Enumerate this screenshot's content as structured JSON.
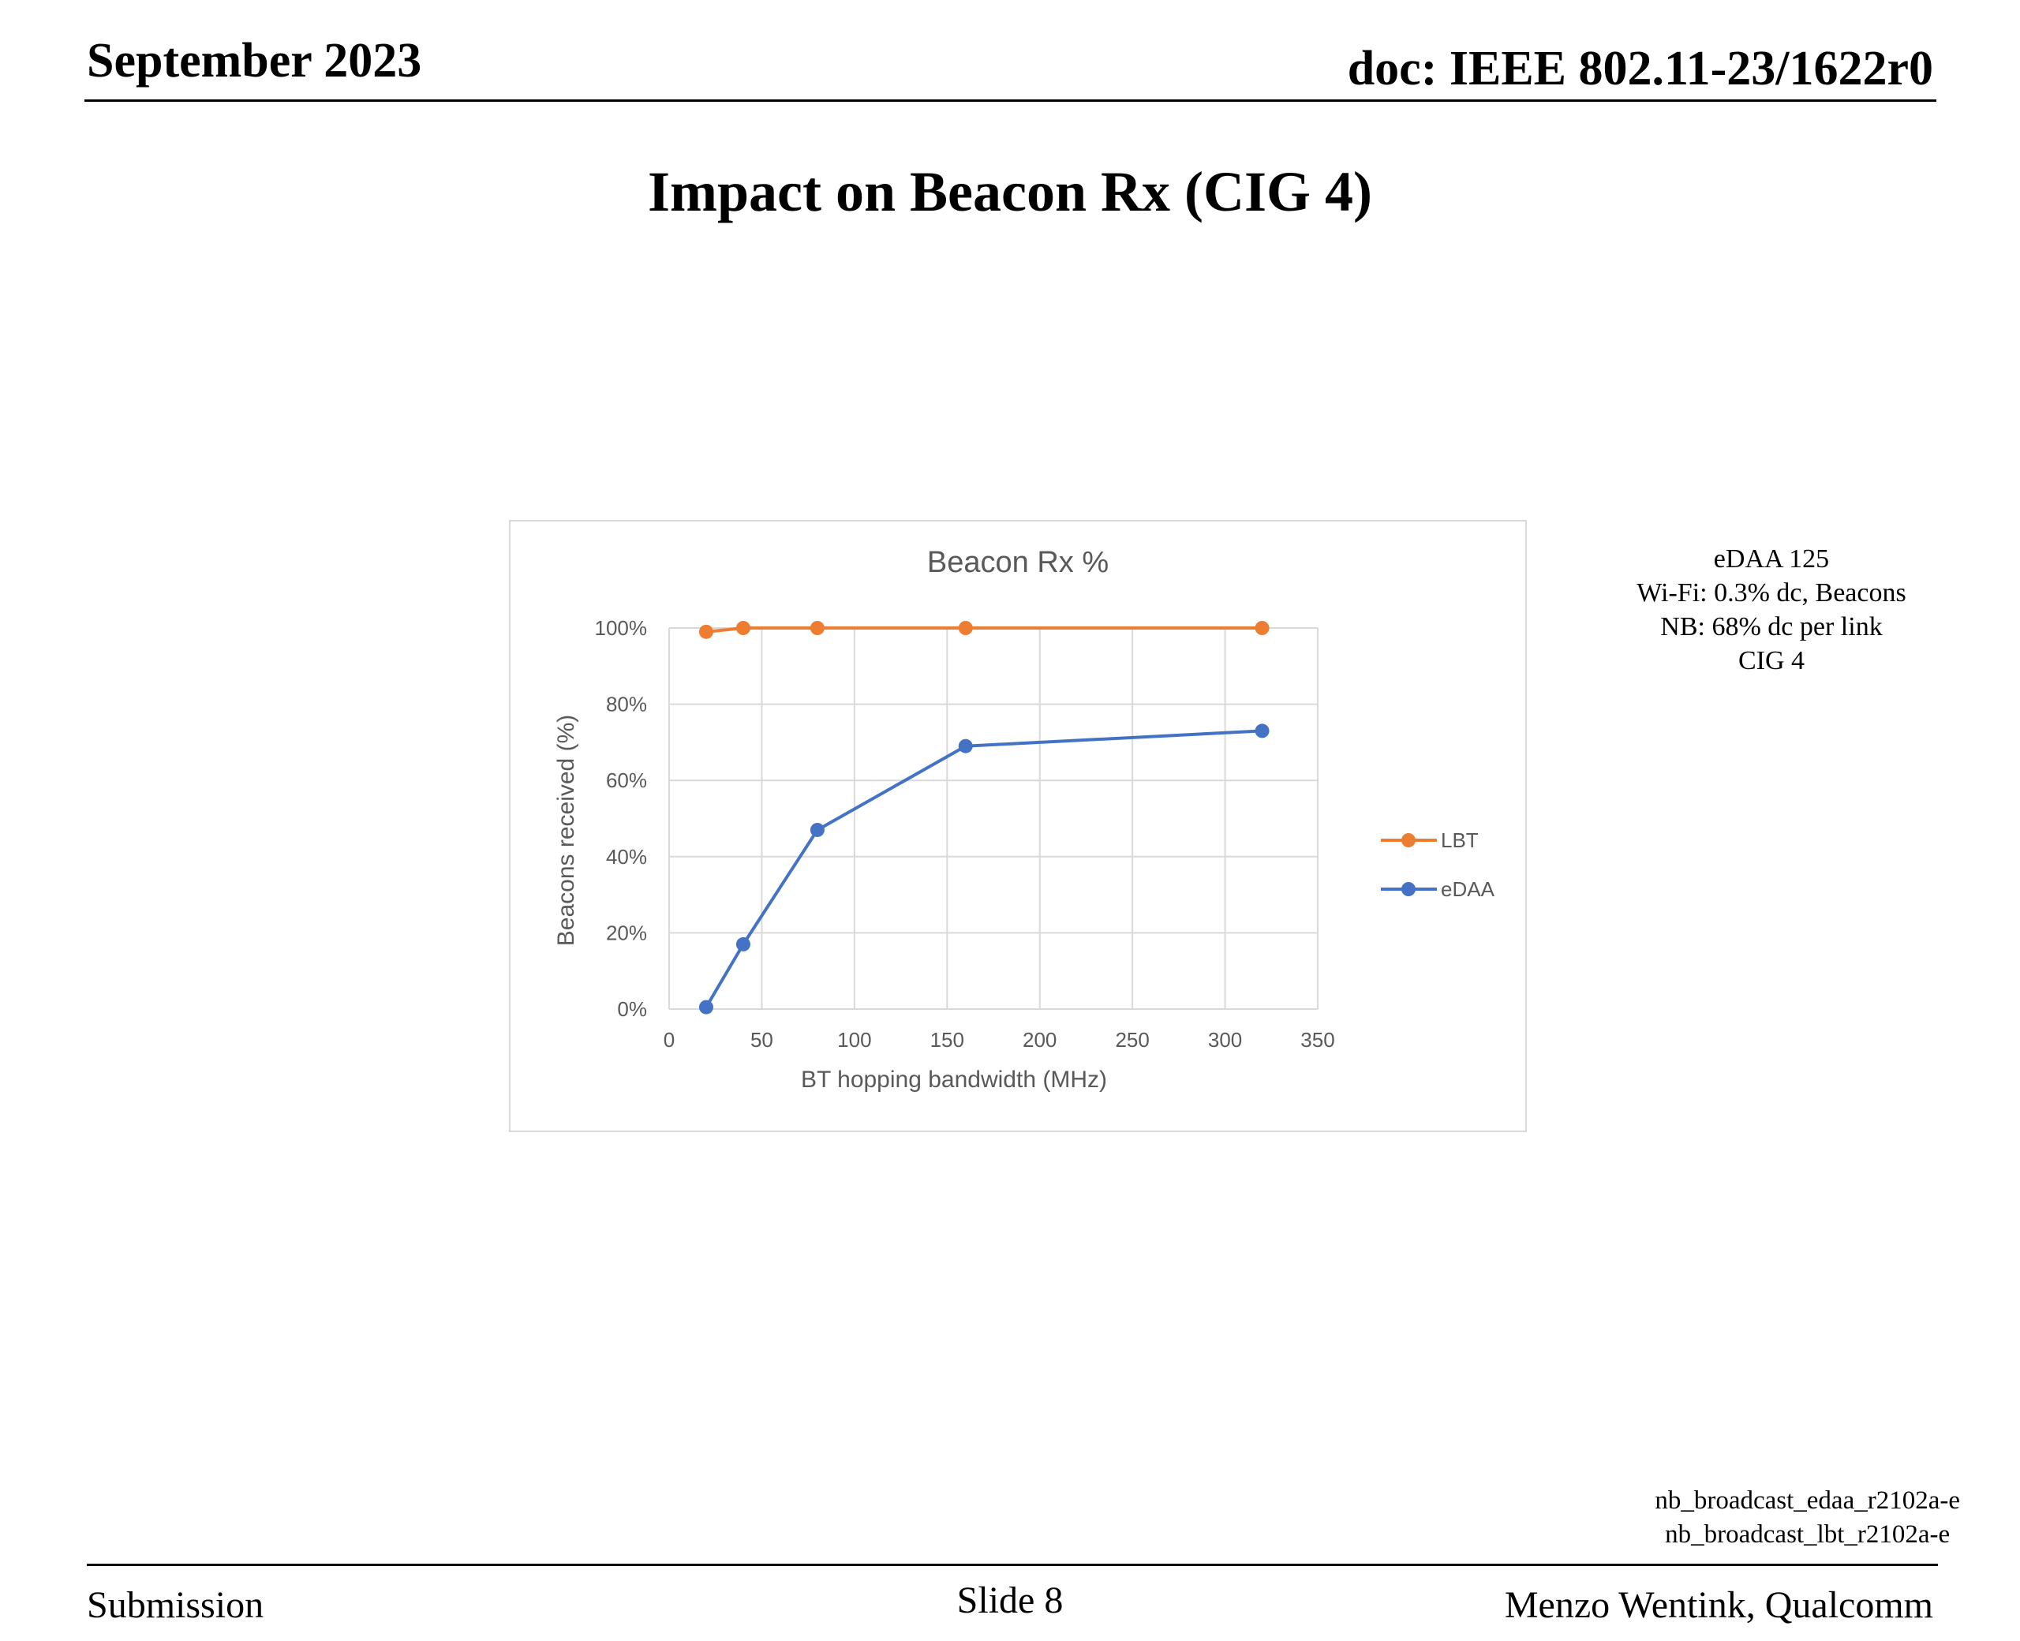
{
  "header": {
    "date": "September 2023",
    "doc": "doc: IEEE 802.11-23/1622r0"
  },
  "slide_title": "Impact on Beacon Rx (CIG 4)",
  "side_note": [
    "eDAA 125",
    "Wi-Fi: 0.3% dc, Beacons",
    "NB: 68% dc per link",
    "CIG 4"
  ],
  "source_files": [
    "nb_broadcast_edaa_r2102a-e",
    "nb_broadcast_lbt_r2102a-e"
  ],
  "footer": {
    "left": "Submission",
    "center": "Slide 8",
    "right": "Menzo Wentink, Qualcomm"
  },
  "colors": {
    "LBT": "#ED7D31",
    "eDAA": "#4472C4",
    "grid": "#D9D9D9"
  },
  "chart_data": {
    "type": "line",
    "title": "Beacon Rx %",
    "xlabel": "BT hopping bandwidth (MHz)",
    "ylabel": "Beacons received (%)",
    "xlim": [
      0,
      350
    ],
    "ylim": [
      0,
      100
    ],
    "x_ticks": [
      0,
      50,
      100,
      150,
      200,
      250,
      300,
      350
    ],
    "y_ticks": [
      0,
      20,
      40,
      60,
      80,
      100
    ],
    "y_tick_labels": [
      "0%",
      "20%",
      "40%",
      "60%",
      "80%",
      "100%"
    ],
    "grid": true,
    "legend_position": "right",
    "series": [
      {
        "name": "LBT",
        "x": [
          20,
          40,
          80,
          160,
          320
        ],
        "y": [
          99,
          100,
          100,
          100,
          100
        ]
      },
      {
        "name": "eDAA",
        "x": [
          20,
          40,
          80,
          160,
          320
        ],
        "y": [
          0.5,
          17,
          47,
          69,
          73
        ]
      }
    ]
  }
}
